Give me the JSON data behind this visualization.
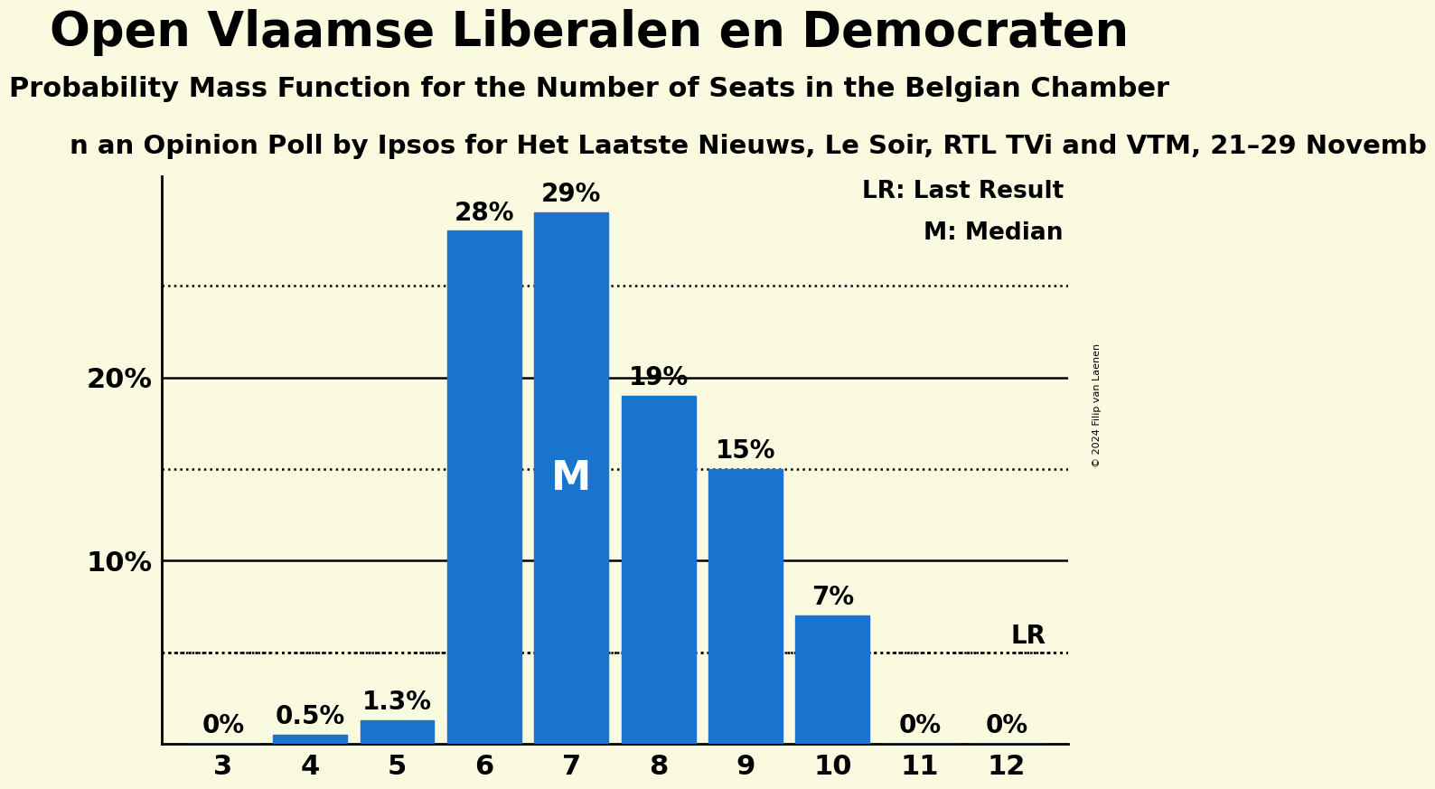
{
  "title": "Open Vlaamse Liberalen en Democraten",
  "subtitle": "Probability Mass Function for the Number of Seats in the Belgian Chamber",
  "third_line": "n an Opinion Poll by Ipsos for Het Laatste Nieuws, Le Soir, RTL TVi and VTM, 21–29 Novemb",
  "copyright": "© 2024 Filip van Laenen",
  "seats": [
    3,
    4,
    5,
    6,
    7,
    8,
    9,
    10,
    11,
    12
  ],
  "probabilities": [
    0.0,
    0.5,
    1.3,
    28.0,
    29.0,
    19.0,
    15.0,
    7.0,
    0.0,
    0.0
  ],
  "bar_color": "#1874CD",
  "median_seat": 7,
  "lr_value": 5.0,
  "legend_lr": "LR: Last Result",
  "legend_m": "M: Median",
  "background_color": "#FAFAE0",
  "yticks_solid": [
    10,
    20
  ],
  "yticks_dotted": [
    5,
    15,
    25
  ],
  "ylim": [
    0,
    31
  ],
  "bar_label_fontsize": 20,
  "tick_label_fontsize": 22,
  "title_fontsize": 38,
  "subtitle_fontsize": 22,
  "third_line_fontsize": 21,
  "legend_fontsize": 19,
  "median_label_fontsize": 32,
  "copyright_fontsize": 8
}
